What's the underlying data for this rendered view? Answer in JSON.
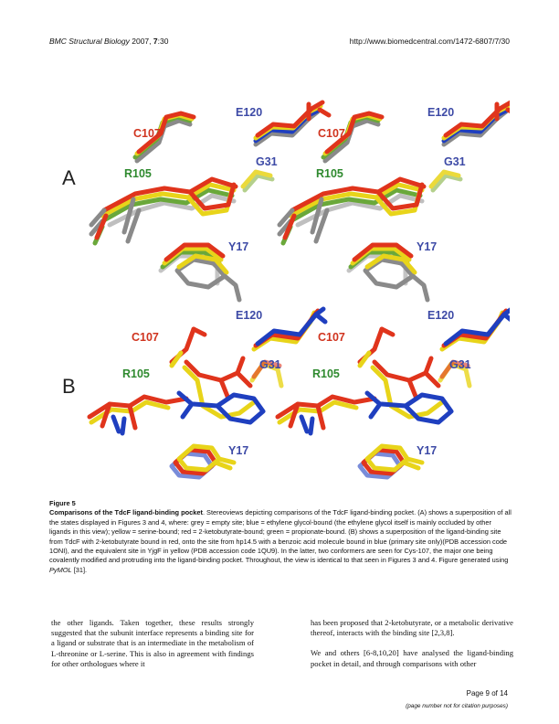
{
  "header": {
    "journal": "BMC Structural Biology",
    "year": "2007,",
    "volume": "7",
    "article": ":30",
    "url": "http://www.biomedcentral.com/1472-6807/7/30"
  },
  "figure": {
    "panel_a": "A",
    "panel_b": "B",
    "labels": {
      "e120": "E120",
      "c107": "C107",
      "g31": "G31",
      "r105": "R105",
      "y17": "Y17"
    },
    "colors": {
      "red": "#e0341c",
      "yellow": "#e8d41a",
      "green": "#6aa83a",
      "grey": "#8a8a8a",
      "blue": "#1f3fbf",
      "label_red": "#d0341f",
      "label_green": "#2f8a2f",
      "label_blue": "#3d4aa6"
    }
  },
  "caption": {
    "label": "Figure 5",
    "title": "Comparisons of the TdcF ligand-binding pocket",
    "body": ". Stereoviews depicting comparisons of the TdcF ligand-binding pocket. (A) shows a superposition of all the states displayed in Figures 3 and 4, where: grey = empty site; blue = ethylene glycol-bound (the ethylene glycol itself is mainly occluded by other ligands in this view); yellow = serine-bound; red = 2-ketobutyrate-bound; green = propionate-bound. (B) shows a superposition of the ligand-binding site from TdcF with 2-ketobutyrate bound in red, onto the site from hp14.5 with a benzoic acid molecule bound in blue (primary site only)(PDB accession code 1ONI), and the equivalent site in YjgF in yellow (PDB accession code 1QU9). In the latter, two conformers are seen for Cys-107, the major one being covalently modified and protruding into the ligand-binding pocket. Throughout, the view is identical to that seen in Figures 3 and 4. Figure generated using ",
    "software": "PyMOL",
    "ref": " [31]."
  },
  "body_text": {
    "left_col": "the other ligands. Taken together, these results strongly suggested that the subunit interface represents a binding site for a ligand or substrate that is an intermediate in the metabolism of L-threonine or L-serine. This is also in agreement with findings for other orthologues where it",
    "right_col_1": "has been proposed that 2-ketobutyrate, or a metabolic derivative thereof, interacts with the binding site [2,3,8].",
    "right_col_2": "We and others [6-8,10,20] have analysed the ligand-binding pocket in detail, and through comparisons with other"
  },
  "footer": {
    "page": "Page 9 of 14",
    "note": "(page number not for citation purposes)"
  }
}
